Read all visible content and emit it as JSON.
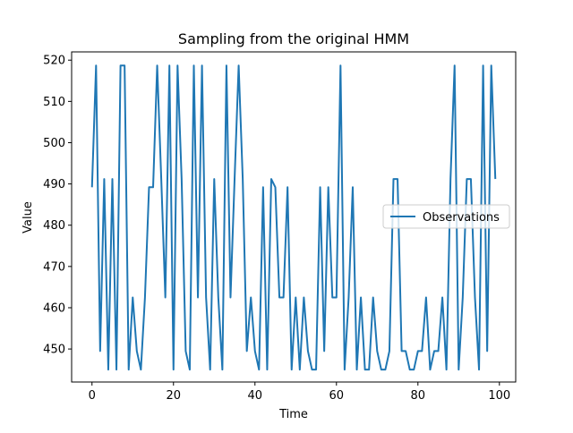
{
  "chart_data": {
    "type": "line",
    "title": "Sampling from the original HMM",
    "xlabel": "Time",
    "ylabel": "Value",
    "xlim": [
      -5,
      104
    ],
    "ylim": [
      442.0,
      522.0
    ],
    "xticks": [
      0,
      20,
      40,
      60,
      80,
      100
    ],
    "yticks": [
      450,
      460,
      470,
      480,
      490,
      500,
      510,
      520
    ],
    "grid": false,
    "legend_position": "center-right",
    "series": [
      {
        "name": "Observations",
        "color": "#1f77b4",
        "x": [
          0,
          1,
          2,
          3,
          4,
          5,
          6,
          7,
          8,
          9,
          10,
          11,
          12,
          13,
          14,
          15,
          16,
          17,
          18,
          19,
          20,
          21,
          22,
          23,
          24,
          25,
          26,
          27,
          28,
          29,
          30,
          31,
          32,
          33,
          34,
          35,
          36,
          37,
          38,
          39,
          40,
          41,
          42,
          43,
          44,
          45,
          46,
          47,
          48,
          49,
          50,
          51,
          52,
          53,
          54,
          55,
          56,
          57,
          58,
          59,
          60,
          61,
          62,
          63,
          64,
          65,
          66,
          67,
          68,
          69,
          70,
          71,
          72,
          73,
          74,
          75,
          76,
          77,
          78,
          79,
          80,
          81,
          82,
          83,
          84,
          85,
          86,
          87,
          88,
          89,
          90,
          91,
          92,
          93,
          94,
          95,
          96,
          97,
          98,
          99
        ],
        "values": [
          489.2,
          518.7,
          449.5,
          491.2,
          445.0,
          491.2,
          445.0,
          518.7,
          518.7,
          445.0,
          462.5,
          449.5,
          445.0,
          462.5,
          489.2,
          489.2,
          518.7,
          491.2,
          462.5,
          518.7,
          445.0,
          518.7,
          491.2,
          449.5,
          445.0,
          518.7,
          462.5,
          518.7,
          462.5,
          445.0,
          491.2,
          462.5,
          445.0,
          518.7,
          462.5,
          491.2,
          518.7,
          491.2,
          449.5,
          462.5,
          449.5,
          445.0,
          489.2,
          445.0,
          491.2,
          489.2,
          462.5,
          462.5,
          489.2,
          445.0,
          462.5,
          445.0,
          462.5,
          449.5,
          445.0,
          445.0,
          489.2,
          449.5,
          489.2,
          462.5,
          462.5,
          518.7,
          445.0,
          462.5,
          489.2,
          445.0,
          462.5,
          445.0,
          445.0,
          462.5,
          449.5,
          445.0,
          445.0,
          449.5,
          491.2,
          491.2,
          449.5,
          449.5,
          445.0,
          445.0,
          449.5,
          449.5,
          462.5,
          445.0,
          449.5,
          449.5,
          462.5,
          445.0,
          491.2,
          518.7,
          445.0,
          462.5,
          491.2,
          491.2,
          462.5,
          445.0,
          518.7,
          449.5,
          518.7,
          491.2
        ]
      }
    ]
  }
}
